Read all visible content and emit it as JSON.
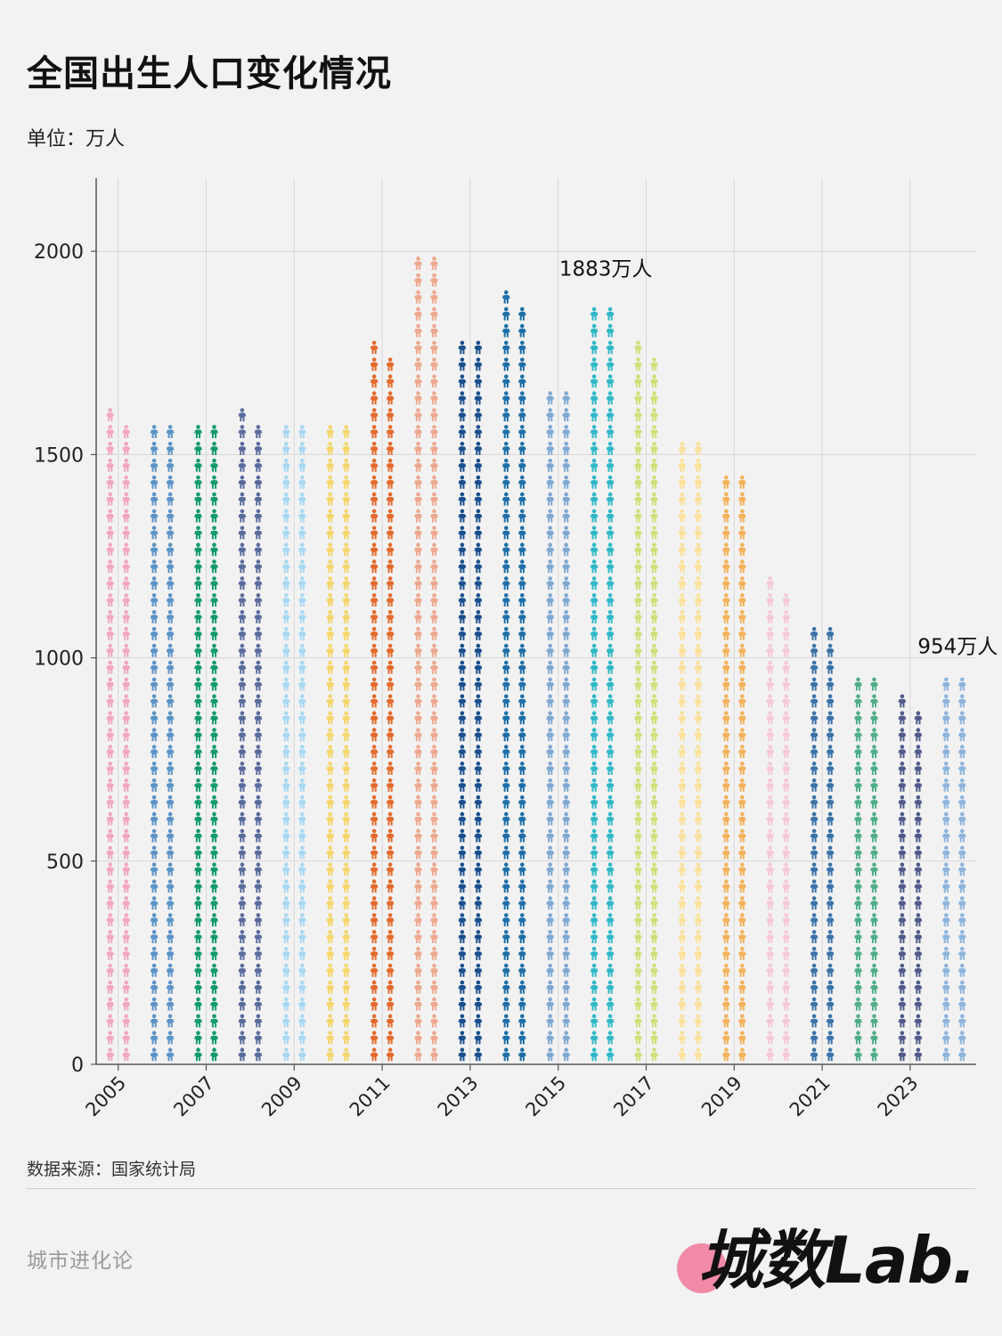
{
  "title": "全国出生人口变化情况",
  "unit_label": "单位：万人",
  "source_label": "数据来源：国家统计局",
  "footer_brand": "城市进化论",
  "logo_text": "城数Lab.",
  "chart_data": {
    "type": "bar",
    "style": "pictogram",
    "categories": [
      "2005",
      "2006",
      "2007",
      "2008",
      "2009",
      "2010",
      "2011",
      "2012",
      "2013",
      "2014",
      "2015",
      "2016",
      "2017",
      "2018",
      "2019",
      "2020",
      "2021",
      "2022",
      "2023",
      "2024"
    ],
    "values": [
      1617,
      1584,
      1594,
      1608,
      1591,
      1588,
      1785,
      1973,
      1776,
      1897,
      1655,
      1883,
      1765,
      1523,
      1465,
      1202,
      1062,
      956,
      902,
      954
    ],
    "xticks": [
      "2005",
      "2007",
      "2009",
      "2011",
      "2013",
      "2015",
      "2017",
      "2019",
      "2021",
      "2023"
    ],
    "yticks": [
      0,
      500,
      1000,
      1500,
      2000
    ],
    "ylim": [
      0,
      2180
    ],
    "grid": true,
    "annotations": [
      {
        "category": "2016",
        "text": "1883万人"
      },
      {
        "category": "2024",
        "text": "954万人"
      }
    ],
    "colors": [
      "#f2a7c0",
      "#5b93c7",
      "#129a6b",
      "#5a6a9c",
      "#a9d8f2",
      "#f5d66a",
      "#e46a2c",
      "#eda88f",
      "#1a4e8c",
      "#1e6fa8",
      "#7fa8d3",
      "#2fb8c8",
      "#cfe07a",
      "#fbe19a",
      "#f4b25a",
      "#f6c8d6",
      "#3b73a8",
      "#4fae89",
      "#4f5a8a",
      "#8db4dc"
    ]
  }
}
